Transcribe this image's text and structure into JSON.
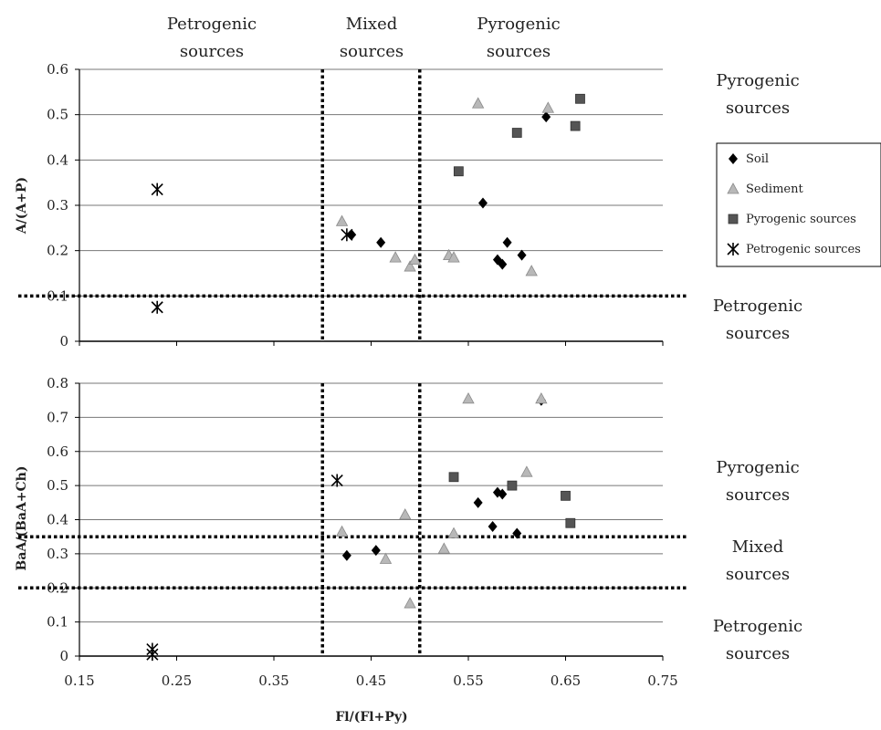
{
  "header_labels": {
    "petrogenic": [
      "Petrogenic",
      "sources"
    ],
    "mixed": [
      "Mixed",
      "sources"
    ],
    "pyrogenic": [
      "Pyrogenic",
      "sources"
    ]
  },
  "right_labels": {
    "top_pyrogenic": [
      "Pyrogenic",
      "sources"
    ],
    "top_petrogenic": [
      "Petrogenic",
      "sources"
    ],
    "bottom_pyrogenic": [
      "Pyrogenic",
      "sources"
    ],
    "bottom_mixed": [
      "Mixed",
      "sources"
    ],
    "bottom_petrogenic": [
      "Petrogenic",
      "sources"
    ]
  },
  "legend": [
    {
      "label": "Soil",
      "marker": "diamond"
    },
    {
      "label": "Sediment",
      "marker": "triangle"
    },
    {
      "label": "Pyrogenic sources",
      "marker": "square"
    },
    {
      "label": "Petrogenic sources",
      "marker": "asterisk"
    }
  ],
  "colors": {
    "soil": "#000000",
    "sediment": "#b8b8b8",
    "pyrogenic": "#555555",
    "petrogenic": "#000000"
  },
  "chart_data": [
    {
      "type": "scatter",
      "ylabel": "A/(A+P)",
      "xlabel": "",
      "xlim": [
        0.15,
        0.75
      ],
      "ylim": [
        0,
        0.6
      ],
      "yticks": [
        "0",
        "0.1",
        "0.2",
        "0.3",
        "0.4",
        "0.5",
        "0.6"
      ],
      "grid": true,
      "thresholds": {
        "x": [
          0.4,
          0.5
        ],
        "y": [
          0.1
        ]
      },
      "series": [
        {
          "name": "Soil",
          "x": [
            0.43,
            0.46,
            0.565,
            0.58,
            0.585,
            0.59,
            0.605,
            0.63
          ],
          "y": [
            0.235,
            0.218,
            0.305,
            0.18,
            0.17,
            0.218,
            0.19,
            0.495
          ]
        },
        {
          "name": "Sediment",
          "x": [
            0.42,
            0.475,
            0.49,
            0.495,
            0.53,
            0.535,
            0.56,
            0.615,
            0.632
          ],
          "y": [
            0.265,
            0.185,
            0.165,
            0.18,
            0.19,
            0.185,
            0.525,
            0.155,
            0.515
          ]
        },
        {
          "name": "Pyrogenic sources",
          "x": [
            0.54,
            0.6,
            0.66,
            0.665
          ],
          "y": [
            0.375,
            0.46,
            0.475,
            0.535
          ]
        },
        {
          "name": "Petrogenic sources",
          "x": [
            0.23,
            0.23,
            0.425
          ],
          "y": [
            0.335,
            0.075,
            0.235
          ]
        }
      ]
    },
    {
      "type": "scatter",
      "ylabel": "BaA/(BaA+Ch)",
      "xlabel": "Fl/(Fl+Py)",
      "xlim": [
        0.15,
        0.75
      ],
      "ylim": [
        0,
        0.8
      ],
      "xticks": [
        "0.15",
        "0.25",
        "0.35",
        "0.45",
        "0.55",
        "0.65",
        "0.75"
      ],
      "yticks": [
        "0",
        "0.1",
        "0.2",
        "0.3",
        "0.4",
        "0.5",
        "0.6",
        "0.7",
        "0.8"
      ],
      "grid": true,
      "thresholds": {
        "x": [
          0.4,
          0.5
        ],
        "y": [
          0.2,
          0.35
        ]
      },
      "series": [
        {
          "name": "Soil",
          "x": [
            0.425,
            0.455,
            0.56,
            0.575,
            0.58,
            0.585,
            0.6,
            0.625
          ],
          "y": [
            0.295,
            0.31,
            0.45,
            0.38,
            0.48,
            0.475,
            0.36,
            0.75
          ]
        },
        {
          "name": "Sediment",
          "x": [
            0.42,
            0.465,
            0.485,
            0.49,
            0.525,
            0.535,
            0.55,
            0.61,
            0.625
          ],
          "y": [
            0.365,
            0.285,
            0.415,
            0.155,
            0.315,
            0.36,
            0.755,
            0.54,
            0.755
          ]
        },
        {
          "name": "Pyrogenic sources",
          "x": [
            0.535,
            0.595,
            0.65,
            0.655
          ],
          "y": [
            0.525,
            0.5,
            0.47,
            0.39
          ]
        },
        {
          "name": "Petrogenic sources",
          "x": [
            0.225,
            0.225,
            0.415
          ],
          "y": [
            0.02,
            0.005,
            0.515
          ]
        }
      ]
    }
  ]
}
